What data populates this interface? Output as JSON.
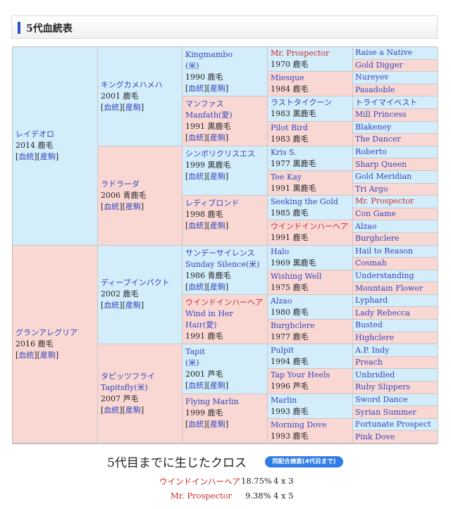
{
  "header": {
    "title": "5代血統表"
  },
  "colors": {
    "male_bg": "#d3edfb",
    "female_bg": "#f9d8d4",
    "link": "#3344bb",
    "cross_red": "#cc2a2a",
    "button": "#2f7be8"
  },
  "links": {
    "pedigree": "血統",
    "offspring": "産駒"
  },
  "gen1": [
    {
      "name": "レイデオロ",
      "info": "2014 鹿毛",
      "sex": "m"
    },
    {
      "name": "グランアレグリア",
      "info": "2016 鹿毛",
      "sex": "f"
    }
  ],
  "gen2": [
    {
      "name": "キングカメハメハ",
      "info": "2001 鹿毛",
      "sex": "m"
    },
    {
      "name": "ラドラーダ",
      "info": "2006 青鹿毛",
      "sex": "f"
    },
    {
      "name": "ディープインパクト",
      "info": "2002 鹿毛",
      "sex": "m"
    },
    {
      "name": "タピッツフライ",
      "sub": "Tapitsfly(米)",
      "info": "2007 芦毛",
      "sex": "f"
    }
  ],
  "gen3": [
    {
      "name": "Kingmambo",
      "sub": "(米)",
      "info": "1990 鹿毛",
      "sex": "m"
    },
    {
      "name": "マンファス",
      "sub": "Manfath(愛)",
      "info": "1991 黒鹿毛",
      "sex": "f"
    },
    {
      "name": "シンボリクリスエス",
      "info": "1999 黒鹿毛",
      "sex": "m"
    },
    {
      "name": "レディブロンド",
      "info": "1998 鹿毛",
      "sex": "f"
    },
    {
      "name": "サンデーサイレンス",
      "sub": "Sunday Silence(米)",
      "info": "1986 青鹿毛",
      "sex": "m"
    },
    {
      "name": "ウインドインハーヘア",
      "sub": "Wind in Her Hair(愛)",
      "info": "1991 鹿毛",
      "sex": "f",
      "cross": true
    },
    {
      "name": "Tapit",
      "sub": "(米)",
      "info": "2001 芦毛",
      "sex": "m"
    },
    {
      "name": "Flying Marlin",
      "info": "1999 鹿毛",
      "sex": "f"
    }
  ],
  "gen4": [
    {
      "name": "Mr. Prospector",
      "info": "1970 鹿毛",
      "sex": "m",
      "cross": true
    },
    {
      "name": "Miesque",
      "info": "1984 鹿毛",
      "sex": "f"
    },
    {
      "name": "ラストタイクーン",
      "info": "1983 黒鹿毛",
      "sex": "m"
    },
    {
      "name": "Pilot Bird",
      "info": "1983 鹿毛",
      "sex": "f"
    },
    {
      "name": "Kris S.",
      "info": "1977 黒鹿毛",
      "sex": "m"
    },
    {
      "name": "Tee Kay",
      "info": "1991 黒鹿毛",
      "sex": "f"
    },
    {
      "name": "Seeking the Gold",
      "info": "1985 鹿毛",
      "sex": "m"
    },
    {
      "name": "ウインドインハーヘア",
      "info": "1991 鹿毛",
      "sex": "f",
      "cross": true
    },
    {
      "name": "Halo",
      "info": "1969 黒鹿毛",
      "sex": "m"
    },
    {
      "name": "Wishing Well",
      "info": "1975 鹿毛",
      "sex": "f"
    },
    {
      "name": "Alzao",
      "info": "1980 鹿毛",
      "sex": "m"
    },
    {
      "name": "Burghclere",
      "info": "1977 鹿毛",
      "sex": "f"
    },
    {
      "name": "Pulpit",
      "info": "1994 鹿毛",
      "sex": "m"
    },
    {
      "name": "Tap Your Heels",
      "info": "1996 芦毛",
      "sex": "f"
    },
    {
      "name": "Marlin",
      "info": "1993 鹿毛",
      "sex": "m"
    },
    {
      "name": "Morning Dove",
      "info": "1993 鹿毛",
      "sex": "f"
    }
  ],
  "gen5": [
    {
      "name": "Raise a Native"
    },
    {
      "name": "Gold Digger"
    },
    {
      "name": "Nureyev"
    },
    {
      "name": "Pasadoble"
    },
    {
      "name": "トライマイベスト"
    },
    {
      "name": "Mill Princess"
    },
    {
      "name": "Blakeney"
    },
    {
      "name": "The Dancer"
    },
    {
      "name": "Roberto"
    },
    {
      "name": "Sharp Queen"
    },
    {
      "name": "Gold Meridian"
    },
    {
      "name": "Tri Argo"
    },
    {
      "name": "Mr. Prospector",
      "cross": true
    },
    {
      "name": "Con Game"
    },
    {
      "name": "Alzao"
    },
    {
      "name": "Burghclere"
    },
    {
      "name": "Hail to Reason"
    },
    {
      "name": "Cosmah"
    },
    {
      "name": "Understanding"
    },
    {
      "name": "Mountain Flower"
    },
    {
      "name": "Lyphard"
    },
    {
      "name": "Lady Rebecca"
    },
    {
      "name": "Busted"
    },
    {
      "name": "Highclere"
    },
    {
      "name": "A.P. Indy"
    },
    {
      "name": "Preach"
    },
    {
      "name": "Unbridled"
    },
    {
      "name": "Ruby Slippers"
    },
    {
      "name": "Sword Dance"
    },
    {
      "name": "Syrian Summer"
    },
    {
      "name": "Fortunate Prospect"
    },
    {
      "name": "Pink Dove"
    }
  ],
  "crosses": {
    "title": "5代目までに生じたクロス",
    "search_button": "同配合検索(4代目まで)",
    "items": [
      {
        "name": "ウインドインハーヘア",
        "percent": "18.75%",
        "gens": "4 x 3"
      },
      {
        "name": "Mr. Prospector",
        "percent": "9.38%",
        "gens": "4 x 5"
      }
    ]
  }
}
